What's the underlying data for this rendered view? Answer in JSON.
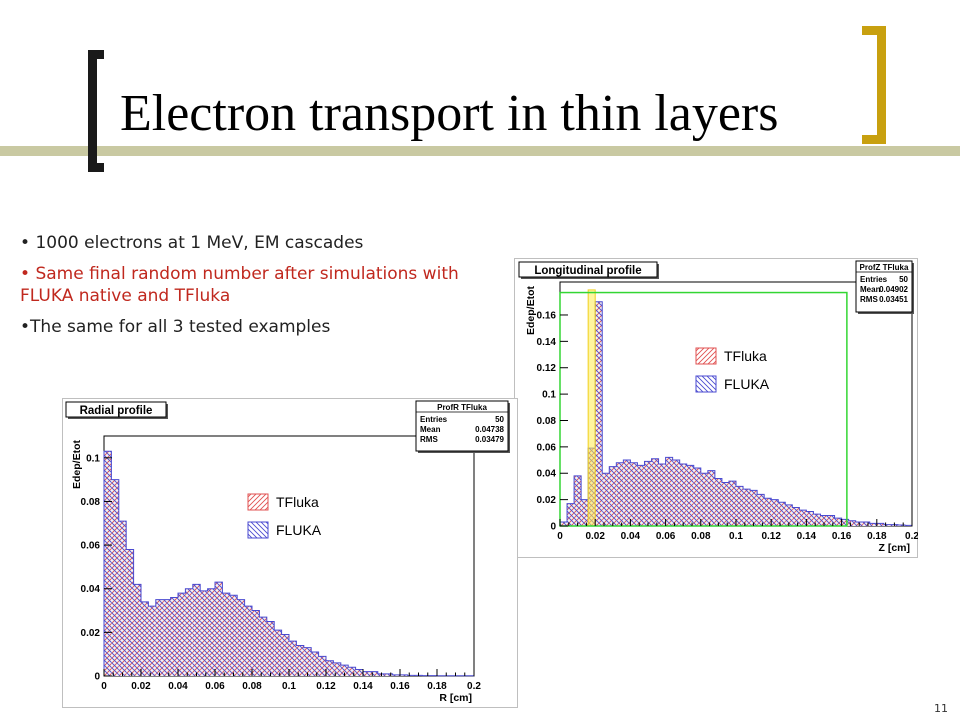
{
  "slide": {
    "title": "Electron transport in thin layers",
    "bullets": [
      "1000 electrons at 1 MeV, EM cascades",
      "Same final random number after simulations with FLUKA native and TFluka",
      "The same for all 3 tested examples"
    ],
    "bullet_markers": [
      "•",
      "•",
      "•"
    ],
    "slide_number": "11",
    "colors": {
      "title_bar": "#c9c9a2",
      "left_bracket": "#1a1a1a",
      "right_bracket": "#c8a00f",
      "highlight_text": "#c0281e"
    }
  },
  "chart_data": [
    {
      "type": "bar",
      "title": "Longitudinal profile",
      "xlabel": "Z [cm]",
      "ylabel": "Edep/Etot",
      "xlim": [
        0,
        0.2
      ],
      "ylim": [
        0,
        0.185
      ],
      "xticks": [
        "0",
        "0.02",
        "0.04",
        "0.06",
        "0.08",
        "0.1",
        "0.12",
        "0.14",
        "0.16",
        "0.18",
        "0.2"
      ],
      "xtick_values": [
        0,
        0.02,
        0.04,
        0.06,
        0.08,
        0.1,
        0.12,
        0.14,
        0.16,
        0.18,
        0.2
      ],
      "yticks": [
        "0",
        "0.02",
        "0.04",
        "0.06",
        "0.08",
        "0.1",
        "0.12",
        "0.14",
        "0.16"
      ],
      "ytick_values": [
        0,
        0.02,
        0.04,
        0.06,
        0.08,
        0.1,
        0.12,
        0.14,
        0.16
      ],
      "legend_position": "center",
      "series": [
        {
          "name": "TFluka",
          "color": "#e05050"
        },
        {
          "name": "FLUKA",
          "color": "#4a4ad0"
        }
      ],
      "bin_width": 0.004,
      "values": [
        0.003,
        0.017,
        0.038,
        0.02,
        0.059,
        0.17,
        0.04,
        0.045,
        0.048,
        0.05,
        0.048,
        0.046,
        0.049,
        0.051,
        0.047,
        0.052,
        0.05,
        0.047,
        0.046,
        0.044,
        0.04,
        0.042,
        0.036,
        0.033,
        0.034,
        0.03,
        0.028,
        0.027,
        0.024,
        0.021,
        0.02,
        0.018,
        0.016,
        0.014,
        0.012,
        0.011,
        0.009,
        0.008,
        0.008,
        0.006,
        0.005,
        0.004,
        0.003,
        0.003,
        0.002,
        0.002,
        0.001,
        0.001,
        0.0008,
        0.0005
      ],
      "stats": {
        "title": "ProfZ TFluka",
        "rows": [
          [
            "Entries",
            "50"
          ],
          [
            "Mean",
            "0.04902"
          ],
          [
            "RMS",
            "0.03451"
          ]
        ]
      },
      "overlay": {
        "yellow_band_x": [
          0.016,
          0.02
        ],
        "green_box_x": [
          0,
          0.163
        ],
        "green_box_y_top": 0.177
      }
    },
    {
      "type": "bar",
      "title": "Radial profile",
      "xlabel": "R [cm]",
      "ylabel": "Edep/Etot",
      "xlim": [
        0,
        0.2
      ],
      "ylim": [
        0,
        0.11
      ],
      "xticks": [
        "0",
        "0.02",
        "0.04",
        "0.06",
        "0.08",
        "0.1",
        "0.12",
        "0.14",
        "0.16",
        "0.18",
        "0.2"
      ],
      "xtick_values": [
        0,
        0.02,
        0.04,
        0.06,
        0.08,
        0.1,
        0.12,
        0.14,
        0.16,
        0.18,
        0.2
      ],
      "yticks": [
        "0",
        "0.02",
        "0.04",
        "0.06",
        "0.08",
        "0.1"
      ],
      "ytick_values": [
        0,
        0.02,
        0.04,
        0.06,
        0.08,
        0.1
      ],
      "legend_position": "center-right",
      "series": [
        {
          "name": "TFluka",
          "color": "#e05050"
        },
        {
          "name": "FLUKA",
          "color": "#4a4ad0"
        }
      ],
      "bin_width": 0.004,
      "values": [
        0.103,
        0.09,
        0.071,
        0.058,
        0.042,
        0.034,
        0.032,
        0.035,
        0.035,
        0.036,
        0.038,
        0.04,
        0.042,
        0.039,
        0.04,
        0.043,
        0.038,
        0.037,
        0.035,
        0.032,
        0.03,
        0.027,
        0.025,
        0.021,
        0.019,
        0.016,
        0.014,
        0.013,
        0.011,
        0.009,
        0.007,
        0.006,
        0.005,
        0.004,
        0.003,
        0.002,
        0.002,
        0.001,
        0.001,
        0.0005,
        0.0005,
        0.0003,
        0.0003,
        0.0002,
        0.0002,
        0.0001,
        0.0001,
        0.0001,
        0.0001,
        0.0001
      ],
      "stats": {
        "title": "ProfR TFluka",
        "rows": [
          [
            "Entries",
            "50"
          ],
          [
            "Mean",
            "0.04738"
          ],
          [
            "RMS",
            "0.03479"
          ]
        ]
      }
    }
  ]
}
